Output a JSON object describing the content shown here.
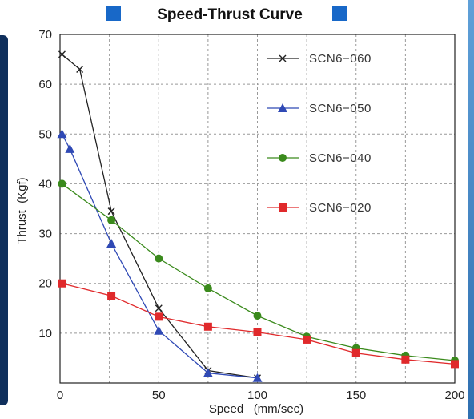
{
  "chart_data": {
    "type": "line",
    "title": "Speed-Thrust Curve",
    "xlabel": "Speed   (mm/sec)",
    "ylabel": "Thrust  (Kgf)",
    "xlim": [
      0,
      200
    ],
    "ylim": [
      0,
      70
    ],
    "xticks": [
      0,
      50,
      100,
      150,
      200
    ],
    "yticks": [
      10,
      20,
      30,
      40,
      50,
      60,
      70
    ],
    "grid": true,
    "legend_position": "top-right",
    "series": [
      {
        "name": "SCN6−060",
        "color": "#222222",
        "marker": "x",
        "points": [
          [
            1,
            66
          ],
          [
            10,
            63
          ],
          [
            26,
            34.5
          ],
          [
            50,
            15
          ],
          [
            75,
            2.5
          ],
          [
            100,
            1
          ]
        ]
      },
      {
        "name": "SCN6−050",
        "color": "#2f49b5",
        "marker": "triangle",
        "points": [
          [
            1,
            50
          ],
          [
            5,
            47
          ],
          [
            26,
            28
          ],
          [
            50,
            10.5
          ],
          [
            75,
            2
          ],
          [
            100,
            1
          ]
        ]
      },
      {
        "name": "SCN6−040",
        "color": "#3a8a1c",
        "marker": "circle",
        "points": [
          [
            1,
            40
          ],
          [
            26,
            32.7
          ],
          [
            50,
            25
          ],
          [
            75,
            19
          ],
          [
            100,
            13.5
          ],
          [
            125,
            9.3
          ],
          [
            150,
            7
          ],
          [
            175,
            5.5
          ],
          [
            200,
            4.5
          ]
        ]
      },
      {
        "name": "SCN6−020",
        "color": "#e0292b",
        "marker": "square",
        "points": [
          [
            1,
            20
          ],
          [
            26,
            17.5
          ],
          [
            50,
            13.3
          ],
          [
            75,
            11.3
          ],
          [
            100,
            10.2
          ],
          [
            125,
            8.7
          ],
          [
            150,
            6
          ],
          [
            175,
            4.7
          ],
          [
            200,
            3.8
          ]
        ]
      }
    ]
  },
  "title_box_color": "#1868c8"
}
